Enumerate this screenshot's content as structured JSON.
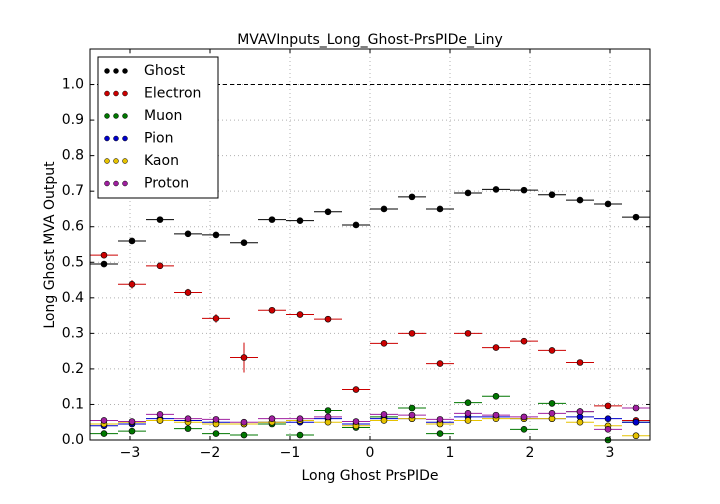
{
  "chart_data": {
    "type": "errorbar",
    "title": "MVAVInputs_Long_Ghost-PrsPIDe_Liny",
    "xlabel": "Long Ghost PrsPIDe",
    "ylabel": "Long Ghost MVA Output",
    "x": [
      -3.325,
      -2.975,
      -2.625,
      -2.275,
      -1.925,
      -1.575,
      -1.225,
      -0.875,
      -0.525,
      -0.175,
      0.175,
      0.525,
      0.875,
      1.225,
      1.575,
      1.925,
      2.275,
      2.625,
      2.975,
      3.325
    ],
    "xerr": 0.175,
    "series": [
      {
        "name": "Ghost",
        "color": "#000000",
        "values": [
          0.495,
          0.56,
          0.62,
          0.58,
          0.577,
          0.555,
          0.62,
          0.617,
          0.642,
          0.605,
          0.65,
          0.684,
          0.65,
          0.695,
          0.705,
          0.703,
          0.69,
          0.675,
          0.664,
          0.627
        ]
      },
      {
        "name": "Electron",
        "color": "#cc0000",
        "values": [
          0.52,
          0.438,
          0.49,
          0.415,
          0.342,
          0.232,
          0.365,
          0.353,
          0.34,
          0.142,
          0.272,
          0.3,
          0.215,
          0.3,
          0.26,
          0.278,
          0.252,
          0.218,
          0.096,
          0.055
        ],
        "yerr": [
          0.005,
          0.012,
          0.005,
          0.01,
          0.012,
          0.042,
          0.005,
          0.008,
          0.005,
          0.005,
          0.005,
          0.005,
          0.005,
          0.005,
          0.005,
          0.005,
          0.005,
          0.005,
          0.005,
          0.005
        ]
      },
      {
        "name": "Muon",
        "color": "#007700",
        "values": [
          0.018,
          0.025,
          0.055,
          0.032,
          0.018,
          0.014,
          0.045,
          0.014,
          0.083,
          0.035,
          0.065,
          0.09,
          0.018,
          0.105,
          0.123,
          0.03,
          0.103,
          0.08,
          0.0,
          0.05
        ]
      },
      {
        "name": "Pion",
        "color": "#0000cc",
        "values": [
          0.04,
          0.045,
          0.06,
          0.055,
          0.05,
          0.045,
          0.05,
          0.05,
          0.06,
          0.045,
          0.06,
          0.06,
          0.05,
          0.065,
          0.065,
          0.06,
          0.06,
          0.065,
          0.06,
          0.05
        ]
      },
      {
        "name": "Kaon",
        "color": "#e6c200",
        "values": [
          0.045,
          0.05,
          0.055,
          0.05,
          0.045,
          0.045,
          0.05,
          0.055,
          0.05,
          0.04,
          0.055,
          0.06,
          0.045,
          0.055,
          0.06,
          0.06,
          0.06,
          0.05,
          0.04,
          0.012
        ]
      },
      {
        "name": "Proton",
        "color": "#a020a0",
        "values": [
          0.055,
          0.052,
          0.072,
          0.06,
          0.058,
          0.05,
          0.06,
          0.06,
          0.065,
          0.052,
          0.072,
          0.07,
          0.058,
          0.075,
          0.07,
          0.065,
          0.075,
          0.08,
          0.03,
          0.09
        ]
      }
    ],
    "xlim": [
      -3.5,
      3.5
    ],
    "xticks": [
      {
        "value": -3,
        "label": "−3"
      },
      {
        "value": -2,
        "label": "−2"
      },
      {
        "value": -1,
        "label": "−1"
      },
      0,
      1,
      2,
      3
    ],
    "ylim": [
      0,
      1.1
    ],
    "yticks": [
      {
        "value": 0,
        "label": "0.0"
      },
      {
        "value": 0.1,
        "label": "0.1"
      },
      {
        "value": 0.2,
        "label": "0.2"
      },
      {
        "value": 0.3,
        "label": "0.3"
      },
      {
        "value": 0.4,
        "label": "0.4"
      },
      {
        "value": 0.5,
        "label": "0.5"
      },
      {
        "value": 0.6,
        "label": "0.6"
      },
      {
        "value": 0.7,
        "label": "0.7"
      },
      {
        "value": 0.8,
        "label": "0.8"
      },
      {
        "value": 0.9,
        "label": "0.9"
      },
      {
        "value": 1.0,
        "label": "1.0"
      }
    ],
    "hline": 1.0,
    "grid": true,
    "legend": "upper-left"
  }
}
